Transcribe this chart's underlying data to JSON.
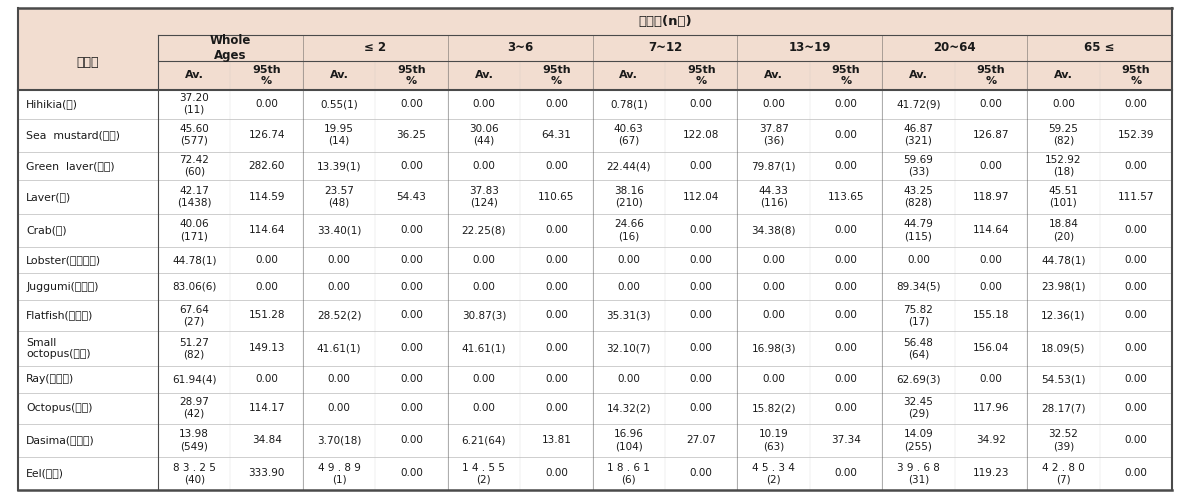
{
  "title": "섭취량(n수)",
  "food_col_label": "식품명",
  "age_groups": [
    "Whole\nAges",
    "≤ 2",
    "3~6",
    "7~12",
    "13~19",
    "20~64",
    "65 ≤"
  ],
  "sub_headers": [
    "Av.",
    "95th\n%"
  ],
  "rows": [
    {
      "food": "Hihikia(톳)",
      "vals": [
        "37.20\n(11)",
        "0.00",
        "0.55(1)",
        "0.00",
        "0.00",
        "0.00",
        "0.78(1)",
        "0.00",
        "0.00",
        "0.00",
        "41.72(9)",
        "0.00",
        "0.00",
        "0.00"
      ]
    },
    {
      "food": "Sea  mustard(미역)",
      "vals": [
        "45.60\n(577)",
        "126.74",
        "19.95\n(14)",
        "36.25",
        "30.06\n(44)",
        "64.31",
        "40.63\n(67)",
        "122.08",
        "37.87\n(36)",
        "0.00",
        "46.87\n(321)",
        "126.87",
        "59.25\n(82)",
        "152.39"
      ]
    },
    {
      "food": "Green  laver(파래)",
      "vals": [
        "72.42\n(60)",
        "282.60",
        "13.39(1)",
        "0.00",
        "0.00",
        "0.00",
        "22.44(4)",
        "0.00",
        "79.87(1)",
        "0.00",
        "59.69\n(33)",
        "0.00",
        "152.92\n(18)",
        "0.00"
      ]
    },
    {
      "food": "Laver(김)",
      "vals": [
        "42.17\n(1438)",
        "114.59",
        "23.57\n(48)",
        "54.43",
        "37.83\n(124)",
        "110.65",
        "38.16\n(210)",
        "112.04",
        "44.33\n(116)",
        "113.65",
        "43.25\n(828)",
        "118.97",
        "45.51\n(101)",
        "111.57"
      ]
    },
    {
      "food": "Crab(게)",
      "vals": [
        "40.06\n(171)",
        "114.64",
        "33.40(1)",
        "0.00",
        "22.25(8)",
        "0.00",
        "24.66\n(16)",
        "0.00",
        "34.38(8)",
        "0.00",
        "44.79\n(115)",
        "114.64",
        "18.84\n(20)",
        "0.00"
      ]
    },
    {
      "food": "Lobster(바닷가재)",
      "vals": [
        "44.78(1)",
        "0.00",
        "0.00",
        "0.00",
        "0.00",
        "0.00",
        "0.00",
        "0.00",
        "0.00",
        "0.00",
        "0.00",
        "0.00",
        "44.78(1)",
        "0.00"
      ]
    },
    {
      "food": "Juggumi(주꽉미)",
      "vals": [
        "83.06(6)",
        "0.00",
        "0.00",
        "0.00",
        "0.00",
        "0.00",
        "0.00",
        "0.00",
        "0.00",
        "0.00",
        "89.34(5)",
        "0.00",
        "23.98(1)",
        "0.00"
      ]
    },
    {
      "food": "Flatfish(가자미)",
      "vals": [
        "67.64\n(27)",
        "151.28",
        "28.52(2)",
        "0.00",
        "30.87(3)",
        "0.00",
        "35.31(3)",
        "0.00",
        "0.00",
        "0.00",
        "75.82\n(17)",
        "155.18",
        "12.36(1)",
        "0.00"
      ]
    },
    {
      "food": "Small\noctopus(낙지)",
      "vals": [
        "51.27\n(82)",
        "149.13",
        "41.61(1)",
        "0.00",
        "41.61(1)",
        "0.00",
        "32.10(7)",
        "0.00",
        "16.98(3)",
        "0.00",
        "56.48\n(64)",
        "156.04",
        "18.09(5)",
        "0.00"
      ]
    },
    {
      "food": "Ray(가오리)",
      "vals": [
        "61.94(4)",
        "0.00",
        "0.00",
        "0.00",
        "0.00",
        "0.00",
        "0.00",
        "0.00",
        "0.00",
        "0.00",
        "62.69(3)",
        "0.00",
        "54.53(1)",
        "0.00"
      ]
    },
    {
      "food": "Octopus(문어)",
      "vals": [
        "28.97\n(42)",
        "114.17",
        "0.00",
        "0.00",
        "0.00",
        "0.00",
        "14.32(2)",
        "0.00",
        "15.82(2)",
        "0.00",
        "32.45\n(29)",
        "117.96",
        "28.17(7)",
        "0.00"
      ]
    },
    {
      "food": "Dasima(다시마)",
      "vals": [
        "13.98\n(549)",
        "34.84",
        "3.70(18)",
        "0.00",
        "6.21(64)",
        "13.81",
        "16.96\n(104)",
        "27.07",
        "10.19\n(63)",
        "37.34",
        "14.09\n(255)",
        "34.92",
        "32.52\n(39)",
        "0.00"
      ]
    },
    {
      "food": "Eel(장어)",
      "vals": [
        "8 3 . 2 5\n(40)",
        "333.90",
        "4 9 . 8 9\n(1)",
        "0.00",
        "1 4 . 5 5\n(2)",
        "0.00",
        "1 8 . 6 1\n(6)",
        "0.00",
        "4 5 . 3 4\n(2)",
        "0.00",
        "3 9 . 6 8\n(31)",
        "119.23",
        "4 2 . 8 0\n(7)",
        "0.00"
      ]
    }
  ],
  "bg_color": "#f2ddd0",
  "white_bg": "#ffffff",
  "border_color": "#4a4a4a",
  "text_color": "#1a1a1a",
  "light_separator": "#bbbbbb"
}
